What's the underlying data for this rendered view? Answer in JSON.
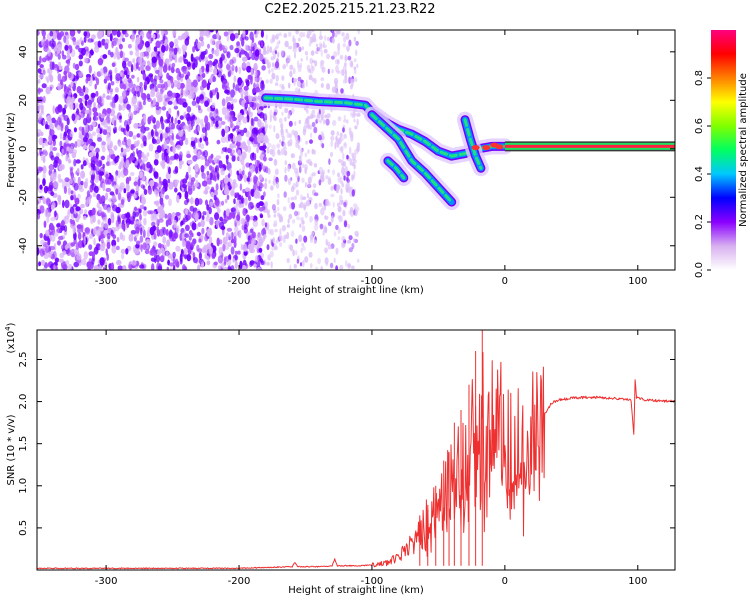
{
  "page": {
    "title": "C2E2.2025.215.21.23.R22"
  },
  "chart_data": [
    {
      "type": "heatmap",
      "title": "C2E2.2025.215.21.23.R22",
      "xlabel": "Height of straight line (km)",
      "ylabel": "Frequency (Hz)",
      "xlim": [
        -352,
        128
      ],
      "ylim": [
        -50,
        49
      ],
      "x_ticks": [
        -300,
        -200,
        -100,
        0,
        100
      ],
      "y_ticks": [
        -40,
        -20,
        0,
        20,
        40
      ],
      "colorbar": {
        "label": "Normalized spectral amplitude",
        "range": [
          0,
          1
        ],
        "ticks": [
          0.0,
          0.2,
          0.4,
          0.6,
          0.8
        ],
        "colors": [
          "#ffffff",
          "#d8b0f0",
          "#8a00ff",
          "#0000ff",
          "#00c8ff",
          "#00ff60",
          "#80ff00",
          "#ffff00",
          "#ff8000",
          "#ff0000",
          "#ff0080"
        ]
      },
      "background_noise": {
        "dense_range_x": [
          -352,
          -180
        ],
        "sparse_range_x": [
          -180,
          -110
        ],
        "color": "#7a00ff"
      },
      "tracks": [
        {
          "name": "",
          "points": [
            [
              -180,
              21
            ],
            [
              -160,
              20.5
            ],
            [
              -140,
              19.5
            ],
            [
              -120,
              19
            ],
            [
              -105,
              18
            ],
            [
              -100,
              15
            ],
            [
              -90,
              11
            ],
            [
              -80,
              8
            ],
            [
              -70,
              6
            ],
            [
              -60,
              3
            ],
            [
              -50,
              -1
            ],
            [
              -40,
              -3
            ],
            [
              -30,
              -2
            ],
            [
              -20,
              0
            ],
            [
              -10,
              1
            ],
            [
              0,
              1
            ]
          ]
        },
        {
          "name": "",
          "points": [
            [
              -100,
              14
            ],
            [
              -90,
              9
            ],
            [
              -80,
              4
            ],
            [
              -70,
              -5
            ],
            [
              -60,
              -10
            ],
            [
              -50,
              -16
            ],
            [
              -40,
              -22
            ]
          ]
        },
        {
          "name": "",
          "points": [
            [
              -88,
              -5
            ],
            [
              -82,
              -8
            ],
            [
              -76,
              -12
            ]
          ]
        },
        {
          "name": "",
          "points": [
            [
              -30,
              12
            ],
            [
              -26,
              4
            ],
            [
              -22,
              -3
            ],
            [
              -18,
              -8
            ]
          ]
        },
        {
          "name": "",
          "points": [
            [
              0,
              1
            ],
            [
              20,
              1
            ],
            [
              40,
              1
            ],
            [
              60,
              1
            ],
            [
              80,
              1
            ],
            [
              100,
              1
            ],
            [
              128,
              1
            ]
          ]
        }
      ]
    },
    {
      "type": "line",
      "xlabel": "Height of straight line (km)",
      "ylabel": "SNR (10 * v/v)",
      "y_multiplier": "(x10",
      "y_multiplier_exp": "4",
      "xlim": [
        -352,
        128
      ],
      "ylim": [
        0,
        2.85
      ],
      "x_ticks": [
        -300,
        -200,
        -100,
        0,
        100
      ],
      "y_ticks": [
        0.5,
        1.0,
        1.5,
        2.0,
        2.5
      ],
      "series": [
        {
          "name": "",
          "color": "#ee3030",
          "points": [
            [
              -352,
              0.02
            ],
            [
              -300,
              0.02
            ],
            [
              -250,
              0.02
            ],
            [
              -200,
              0.02
            ],
            [
              -180,
              0.03
            ],
            [
              -160,
              0.04
            ],
            [
              -158,
              0.09
            ],
            [
              -156,
              0.04
            ],
            [
              -140,
              0.04
            ],
            [
              -130,
              0.05
            ],
            [
              -128,
              0.13
            ],
            [
              -126,
              0.05
            ],
            [
              -110,
              0.05
            ],
            [
              -100,
              0.06
            ],
            [
              -90,
              0.08
            ],
            [
              -80,
              0.15
            ],
            [
              -70,
              0.3
            ],
            [
              -60,
              0.55
            ],
            [
              -50,
              0.85
            ],
            [
              -40,
              1.05
            ],
            [
              -30,
              1.35
            ],
            [
              -25,
              1.55
            ],
            [
              -20,
              1.75
            ],
            [
              -15,
              1.8
            ],
            [
              -10,
              1.85
            ],
            [
              -5,
              1.8
            ],
            [
              0,
              1.6
            ],
            [
              5,
              1.5
            ],
            [
              10,
              1.55
            ],
            [
              15,
              1.6
            ],
            [
              20,
              1.62
            ],
            [
              25,
              1.66
            ],
            [
              30,
              1.85
            ],
            [
              35,
              1.98
            ],
            [
              40,
              2.02
            ],
            [
              50,
              2.04
            ],
            [
              60,
              2.05
            ],
            [
              70,
              2.05
            ],
            [
              80,
              2.04
            ],
            [
              90,
              2.03
            ],
            [
              95,
              2.02
            ],
            [
              97,
              1.6
            ],
            [
              98,
              2.25
            ],
            [
              99,
              2.05
            ],
            [
              105,
              2.02
            ],
            [
              115,
              2.01
            ],
            [
              128,
              2.0
            ]
          ],
          "spikes": [
            [
              -17,
              2.85
            ],
            [
              -22,
              2.6
            ],
            [
              -27,
              2.2
            ],
            [
              -33,
              1.9
            ],
            [
              -38,
              1.75
            ],
            [
              -42,
              1.4
            ],
            [
              -46,
              1.3
            ],
            [
              -52,
              1.0
            ],
            [
              -58,
              0.72
            ],
            [
              -64,
              0.55
            ]
          ]
        }
      ]
    }
  ]
}
